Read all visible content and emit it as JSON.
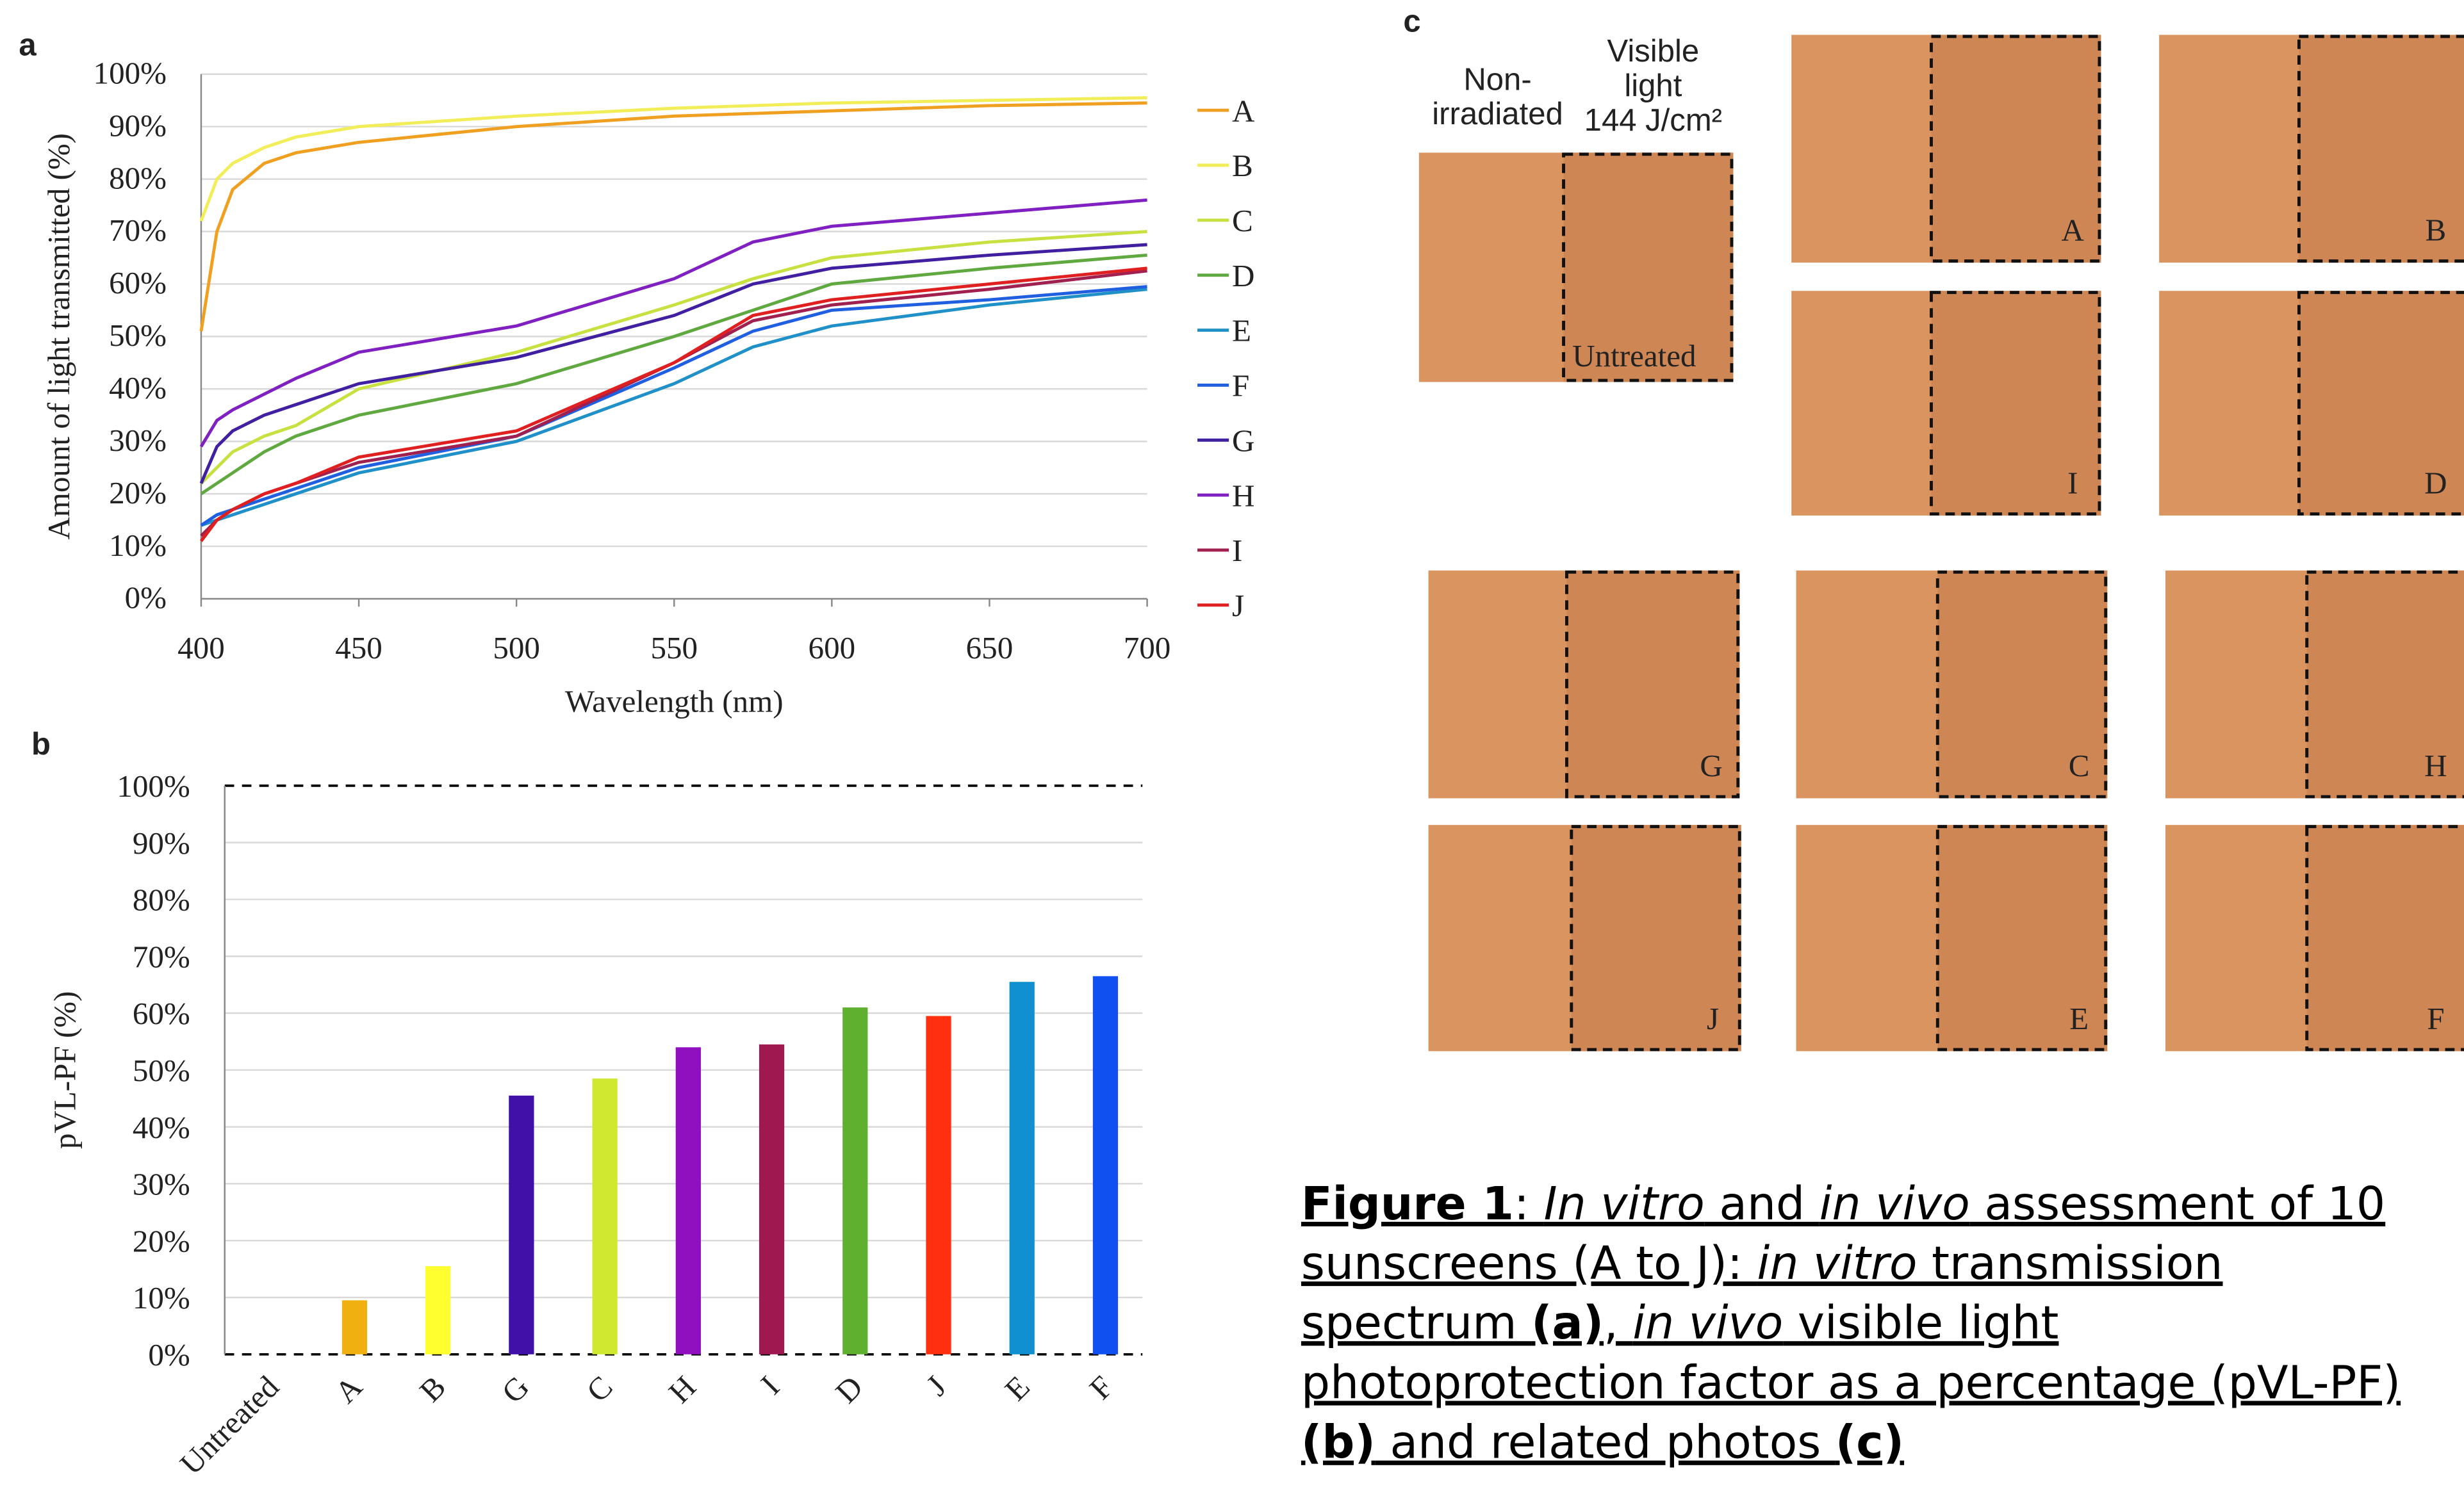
{
  "panel_labels": [
    "a",
    "b",
    "c"
  ],
  "chart_data": [
    {
      "type": "line",
      "xlabel": "Wavelength (nm)",
      "ylabel": "Amount of light transmitted (%)",
      "x": [
        400,
        405,
        410,
        420,
        430,
        450,
        500,
        550,
        575,
        600,
        650,
        700
      ],
      "xlim": [
        400,
        700
      ],
      "xticks": [
        400,
        450,
        500,
        550,
        600,
        650,
        700
      ],
      "ylim": [
        0,
        100
      ],
      "yticks": [
        {
          "value": 0,
          "label": "0%"
        },
        {
          "value": 10,
          "label": "10%"
        },
        {
          "value": 20,
          "label": "20%"
        },
        {
          "value": 30,
          "label": "30%"
        },
        {
          "value": 40,
          "label": "40%"
        },
        {
          "value": 50,
          "label": "50%"
        },
        {
          "value": 60,
          "label": "60%"
        },
        {
          "value": 70,
          "label": "70%"
        },
        {
          "value": 80,
          "label": "80%"
        },
        {
          "value": 90,
          "label": "90%"
        },
        {
          "value": 100,
          "label": "100%"
        }
      ],
      "grid": true,
      "legend": "right",
      "series": [
        {
          "name": "A",
          "color": "#f0a020",
          "values": [
            51,
            70,
            78,
            83,
            85,
            87,
            90,
            92,
            92.5,
            93,
            94,
            94.5
          ]
        },
        {
          "name": "B",
          "color": "#f2ee5a",
          "values": [
            72,
            80,
            83,
            86,
            88,
            90,
            92,
            93.5,
            94,
            94.5,
            95,
            95.5
          ]
        },
        {
          "name": "C",
          "color": "#c8e040",
          "values": [
            22,
            25,
            28,
            31,
            33,
            40,
            47,
            56,
            61,
            65,
            68,
            70
          ]
        },
        {
          "name": "D",
          "color": "#60a840",
          "values": [
            20,
            22,
            24,
            28,
            31,
            35,
            41,
            50,
            55,
            60,
            63,
            65.5
          ]
        },
        {
          "name": "E",
          "color": "#2090c8",
          "values": [
            14,
            15,
            16,
            18,
            20,
            24,
            30,
            41,
            48,
            52,
            56,
            59
          ]
        },
        {
          "name": "F",
          "color": "#2060e0",
          "values": [
            14,
            16,
            17,
            19,
            21,
            25,
            31,
            44,
            51,
            55,
            57,
            59.5
          ]
        },
        {
          "name": "G",
          "color": "#4020a0",
          "values": [
            22,
            29,
            32,
            35,
            37,
            41,
            46,
            54,
            60,
            63,
            65.5,
            67.5
          ]
        },
        {
          "name": "H",
          "color": "#8020c0",
          "values": [
            29,
            34,
            36,
            39,
            42,
            47,
            52,
            61,
            68,
            71,
            73.5,
            76
          ]
        },
        {
          "name": "I",
          "color": "#a02050",
          "values": [
            12,
            15,
            17,
            20,
            22,
            26,
            31,
            45,
            53,
            56,
            59,
            62.5
          ]
        },
        {
          "name": "J",
          "color": "#e02020",
          "values": [
            11,
            15,
            17,
            20,
            22,
            27,
            32,
            45,
            54,
            57,
            60,
            63
          ]
        }
      ]
    },
    {
      "type": "bar",
      "ylabel": "pVL-PF (%)",
      "categories": [
        "Untreated",
        "A",
        "B",
        "G",
        "C",
        "H",
        "I",
        "D",
        "J",
        "E",
        "F"
      ],
      "values": [
        0,
        9.5,
        15.5,
        45.5,
        48.5,
        54,
        54.5,
        61,
        59.5,
        65.5,
        66.5
      ],
      "colors": [
        null,
        "#f0b010",
        "#ffff30",
        "#4010a8",
        "#d0e830",
        "#9010c0",
        "#a01850",
        "#60b030",
        "#ff3010",
        "#1090d0",
        "#1050f0"
      ],
      "ylim": [
        0,
        100
      ],
      "yticks": [
        {
          "value": 0,
          "label": "0%"
        },
        {
          "value": 10,
          "label": "10%"
        },
        {
          "value": 20,
          "label": "20%"
        },
        {
          "value": 30,
          "label": "30%"
        },
        {
          "value": 40,
          "label": "40%"
        },
        {
          "value": 50,
          "label": "50%"
        },
        {
          "value": 60,
          "label": "60%"
        },
        {
          "value": 70,
          "label": "70%"
        },
        {
          "value": 80,
          "label": "80%"
        },
        {
          "value": 90,
          "label": "90%"
        },
        {
          "value": 100,
          "label": "100%"
        }
      ],
      "grid": true
    }
  ],
  "photos": {
    "header_left": [
      "Non-",
      "irradiated"
    ],
    "header_right": [
      "Visible",
      "light",
      "144 J/cm²"
    ],
    "untreated_label": "Untreated",
    "labels": [
      "A",
      "B",
      "I",
      "D",
      "G",
      "C",
      "H",
      "J",
      "E",
      "F"
    ]
  },
  "caption": [
    "Figure 1",
    ": ",
    "In vitro",
    " and ",
    "in vivo",
    " assessment of 10",
    "sunscreens (A to J): ",
    "in vitro",
    " transmission",
    "spectrum ",
    "(a)",
    ", ",
    "in vivo",
    " visible light",
    "photoprotection factor as a percentage (pVL-PF)",
    "(b)",
    " and related photos ",
    "(c)"
  ]
}
